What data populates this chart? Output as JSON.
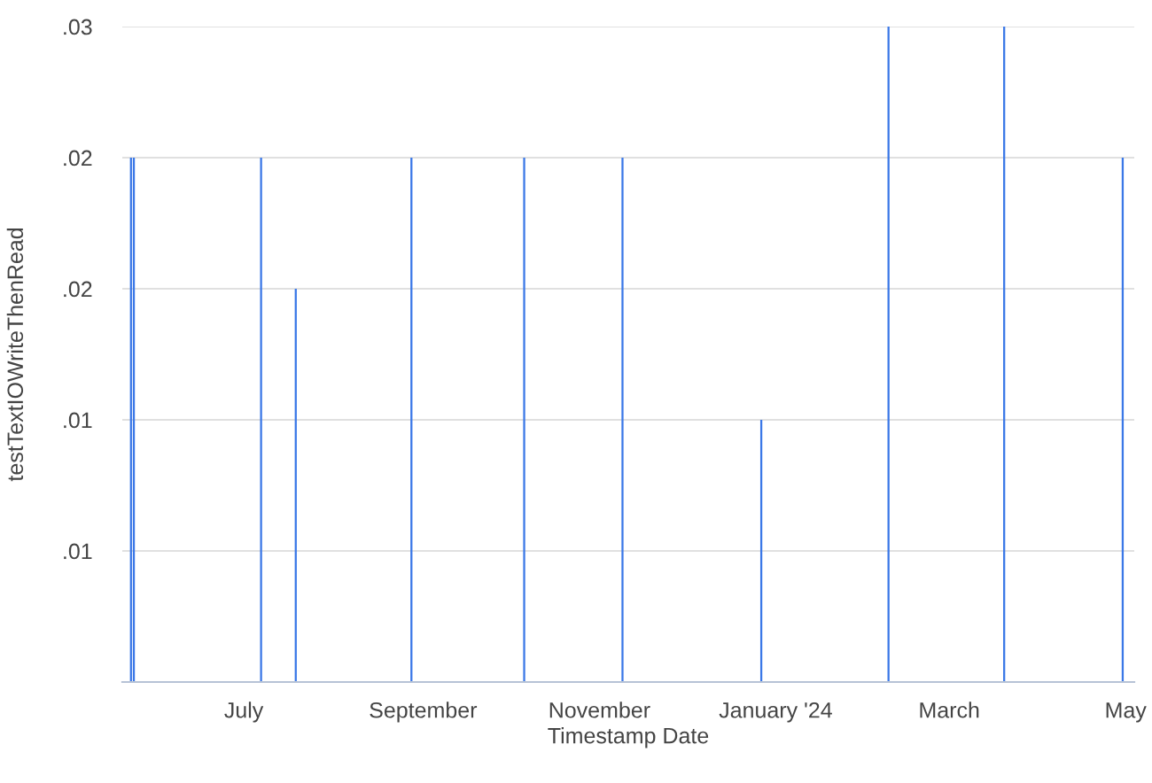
{
  "chart_data": {
    "type": "bar",
    "xlabel": "Timestamp Date",
    "ylabel": "testTextIOWriteThenRead",
    "x": [
      "2023-05-23",
      "2023-05-24",
      "2023-07-07",
      "2023-07-19",
      "2023-08-28",
      "2023-10-06",
      "2023-11-09",
      "2023-12-27",
      "2024-02-09",
      "2024-03-20",
      "2024-04-30"
    ],
    "values": [
      0.02,
      0.02,
      0.02,
      0.015,
      0.02,
      0.02,
      0.02,
      0.01,
      0.025,
      0.025,
      0.02
    ],
    "color": "#3b78e7",
    "xlim": [
      "2023-05-20",
      "2024-05-04"
    ],
    "xticks": [
      {
        "value": "2023-07-01",
        "label": "July"
      },
      {
        "value": "2023-09-01",
        "label": "September"
      },
      {
        "value": "2023-11-01",
        "label": "November"
      },
      {
        "value": "2024-01-01",
        "label": "January '24"
      },
      {
        "value": "2024-03-01",
        "label": "March"
      },
      {
        "value": "2024-05-01",
        "label": "May"
      }
    ],
    "ylim": [
      0,
      0.025
    ],
    "yticks": [
      {
        "value": 0,
        "label": null
      },
      {
        "value": 0.005,
        "label": ".01"
      },
      {
        "value": 0.01,
        "label": ".01"
      },
      {
        "value": 0.015,
        "label": ".02"
      },
      {
        "value": 0.02,
        "label": ".02"
      },
      {
        "value": 0.025,
        "label": ".03"
      }
    ],
    "grid": "y"
  }
}
